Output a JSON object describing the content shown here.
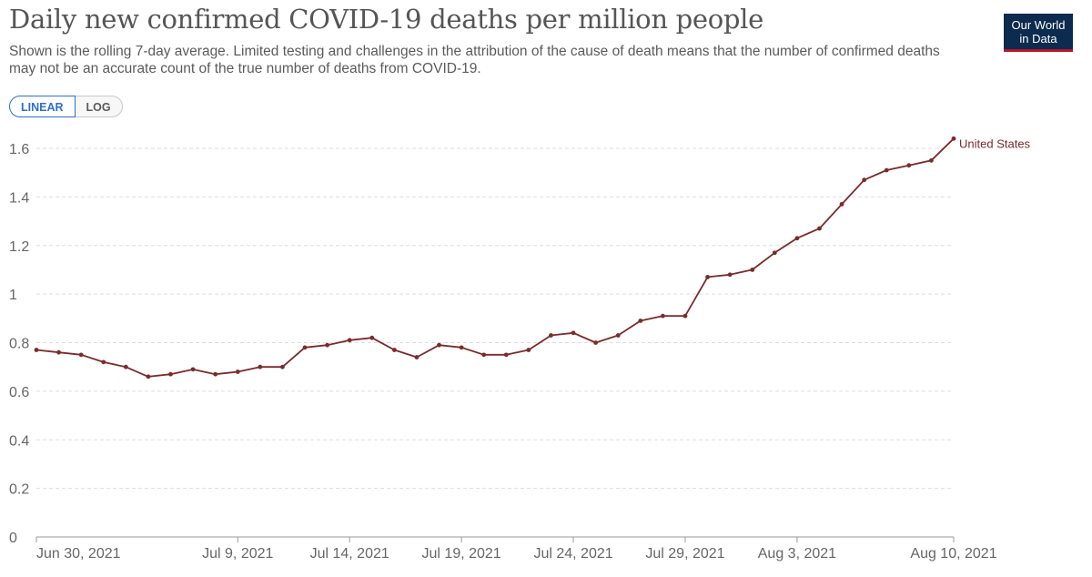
{
  "title": "Daily new confirmed COVID-19 deaths per million people",
  "subtitle": "Shown is the rolling 7-day average. Limited testing and challenges in the attribution of the cause of death means that the number of confirmed deaths may not be an accurate count of the true number of deaths from COVID-19.",
  "logo": {
    "line1": "Our World",
    "line2": "in Data"
  },
  "scale": {
    "linear_label": "LINEAR",
    "log_label": "LOG",
    "selected": "LINEAR"
  },
  "colors": {
    "series": "#7b2b2b",
    "grid": "#dddddd",
    "axis": "#666666"
  },
  "chart_data": {
    "type": "line",
    "title": "Daily new confirmed COVID-19 deaths per million people",
    "xlabel": "",
    "ylabel": "",
    "ylim": [
      0,
      1.6
    ],
    "y_ticks": [
      {
        "value": 0,
        "label": "0"
      },
      {
        "value": 0.2,
        "label": "0.2"
      },
      {
        "value": 0.4,
        "label": "0.4"
      },
      {
        "value": 0.6,
        "label": "0.6"
      },
      {
        "value": 0.8,
        "label": "0.8"
      },
      {
        "value": 1.0,
        "label": "1"
      },
      {
        "value": 1.2,
        "label": "1.2"
      },
      {
        "value": 1.4,
        "label": "1.4"
      },
      {
        "value": 1.6,
        "label": "1.6"
      }
    ],
    "x_start_day": 0,
    "x_end_day": 41,
    "x_ticks": [
      {
        "day": 0,
        "label": "Jun 30, 2021"
      },
      {
        "day": 9,
        "label": "Jul 9, 2021"
      },
      {
        "day": 14,
        "label": "Jul 14, 2021"
      },
      {
        "day": 19,
        "label": "Jul 19, 2021"
      },
      {
        "day": 24,
        "label": "Jul 24, 2021"
      },
      {
        "day": 29,
        "label": "Jul 29, 2021"
      },
      {
        "day": 34,
        "label": "Aug 3, 2021"
      },
      {
        "day": 41,
        "label": "Aug 10, 2021"
      }
    ],
    "series": [
      {
        "name": "United States",
        "x_days": [
          0,
          1,
          2,
          3,
          4,
          5,
          6,
          7,
          8,
          9,
          10,
          11,
          12,
          13,
          14,
          15,
          16,
          17,
          18,
          19,
          20,
          21,
          22,
          23,
          24,
          25,
          26,
          27,
          28,
          29,
          30,
          31,
          32,
          33,
          34,
          35,
          36,
          37,
          38,
          39,
          40,
          41
        ],
        "values": [
          0.77,
          0.76,
          0.75,
          0.72,
          0.7,
          0.66,
          0.67,
          0.69,
          0.67,
          0.68,
          0.7,
          0.7,
          0.78,
          0.79,
          0.81,
          0.82,
          0.77,
          0.74,
          0.79,
          0.78,
          0.75,
          0.75,
          0.77,
          0.83,
          0.84,
          0.8,
          0.83,
          0.89,
          0.91,
          0.91,
          1.07,
          1.08,
          1.1,
          1.17,
          1.23,
          1.27,
          1.37,
          1.47,
          1.51,
          1.53,
          1.55,
          1.64
        ]
      }
    ]
  }
}
